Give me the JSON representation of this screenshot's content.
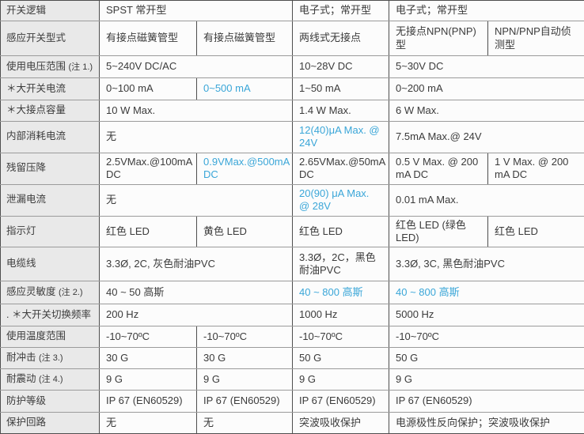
{
  "colors": {
    "accent_blue": "#3aa6d8",
    "label_bg": "#e9e9e9",
    "cell_bg": "#fcfcfc",
    "h_border": "#9b9b9b",
    "v_border": "#4e4e4e",
    "text": "#3b3b3b"
  },
  "table": {
    "rows": [
      {
        "label": "开关逻辑",
        "cells": [
          {
            "text": "SPST 常开型",
            "span": 2
          },
          {
            "text": "电子式；常开型",
            "span": 1
          },
          {
            "text": "电子式；常开型",
            "span": 2
          }
        ]
      },
      {
        "label": "感应开关型式",
        "cells": [
          {
            "text": "有接点磁簧管型"
          },
          {
            "text": "有接点磁簧管型"
          },
          {
            "text": "两线式无接点"
          },
          {
            "text": "无接点NPN(PNP)型"
          },
          {
            "text": "NPN/PNP自动侦测型"
          }
        ]
      },
      {
        "label": "使用电压范围",
        "note": "(注 1.)",
        "cells": [
          {
            "text": "5~240V DC/AC",
            "span": 2
          },
          {
            "text": "10~28V DC"
          },
          {
            "text": "5~30V DC",
            "span": 2
          }
        ]
      },
      {
        "label": "＊大开关电流",
        "cells": [
          {
            "text": "0~100 mA"
          },
          {
            "text": "0~500 mA",
            "blue": true
          },
          {
            "text": "1~50 mA"
          },
          {
            "text": "0~200 mA",
            "span": 2
          }
        ]
      },
      {
        "label": "＊大接点容量",
        "cells": [
          {
            "text": "10 W Max.",
            "span": 2
          },
          {
            "text": "1.4 W Max."
          },
          {
            "text": "6 W Max.",
            "span": 2
          }
        ]
      },
      {
        "label": "内部消耗电流",
        "cells": [
          {
            "text": "无",
            "span": 2
          },
          {
            "text": "12(40)μA Max. @ 24V",
            "blue": true
          },
          {
            "text": "7.5mA Max.@ 24V",
            "span": 2
          }
        ]
      },
      {
        "label": "残留压降",
        "cells": [
          {
            "text": "2.5VMax.@100mA DC"
          },
          {
            "text": "0.9VMax.@500mA DC",
            "blue": true
          },
          {
            "text": "2.65VMax.@50mA DC"
          },
          {
            "text": "0.5 V Max. @ 200 mA DC"
          },
          {
            "text": "1 V Max. @ 200 mA DC"
          }
        ]
      },
      {
        "label": "泄漏电流",
        "cells": [
          {
            "text": "无",
            "span": 2
          },
          {
            "text": "20(90) μA Max. @ 28V",
            "blue": true
          },
          {
            "text": "0.01 mA Max.",
            "span": 2
          }
        ]
      },
      {
        "label": "指示灯",
        "cells": [
          {
            "text": "红色  LED"
          },
          {
            "text": "黄色  LED"
          },
          {
            "text": "红色  LED"
          },
          {
            "text": "红色  LED (绿色 LED)"
          },
          {
            "text": "红色  LED"
          }
        ]
      },
      {
        "label": "电缆线",
        "cells": [
          {
            "text": "3.3Ø, 2C, 灰色耐油PVC",
            "span": 2
          },
          {
            "text": "3.3Ø，2C，黑色耐油PVC"
          },
          {
            "text": "3.3Ø, 3C, 黑色耐油PVC",
            "span": 2
          }
        ]
      },
      {
        "label": "感应灵敏度",
        "note": "(注 2.)",
        "cells": [
          {
            "text": "40 ~ 50 高斯",
            "span": 2
          },
          {
            "text": "40 ~ 800 高斯",
            "blue": true
          },
          {
            "text": "40 ~ 800 高斯",
            "blue": true,
            "span": 2
          }
        ]
      },
      {
        "label": ". ＊大开关切换频率",
        "cells": [
          {
            "text": "200 Hz",
            "span": 2
          },
          {
            "text": "1000 Hz"
          },
          {
            "text": "5000 Hz",
            "span": 2
          }
        ]
      },
      {
        "label": "使用温度范围",
        "cells": [
          {
            "text": "-10~70ºC"
          },
          {
            "text": "-10~70ºC"
          },
          {
            "text": "-10~70ºC"
          },
          {
            "text": "-10~70ºC",
            "span": 2
          }
        ]
      },
      {
        "label": "耐冲击",
        "note": "(注 3.)",
        "cells": [
          {
            "text": "30 G"
          },
          {
            "text": "30 G"
          },
          {
            "text": "50 G"
          },
          {
            "text": "50 G",
            "span": 2
          }
        ]
      },
      {
        "label": "耐震动",
        "note": "(注 4.)",
        "cells": [
          {
            "text": "9 G"
          },
          {
            "text": "9 G"
          },
          {
            "text": "9 G"
          },
          {
            "text": "9 G",
            "span": 2
          }
        ]
      },
      {
        "label": "防护等级",
        "cells": [
          {
            "text": "IP 67 (EN60529)"
          },
          {
            "text": "IP 67 (EN60529)"
          },
          {
            "text": "IP 67 (EN60529)"
          },
          {
            "text": "IP 67 (EN60529)",
            "span": 2
          }
        ]
      },
      {
        "label": "保护回路",
        "cells": [
          {
            "text": "无"
          },
          {
            "text": "无"
          },
          {
            "text": "突波吸收保护"
          },
          {
            "text": "电源极性反向保护；突波吸收保护",
            "span": 2
          }
        ]
      }
    ]
  }
}
